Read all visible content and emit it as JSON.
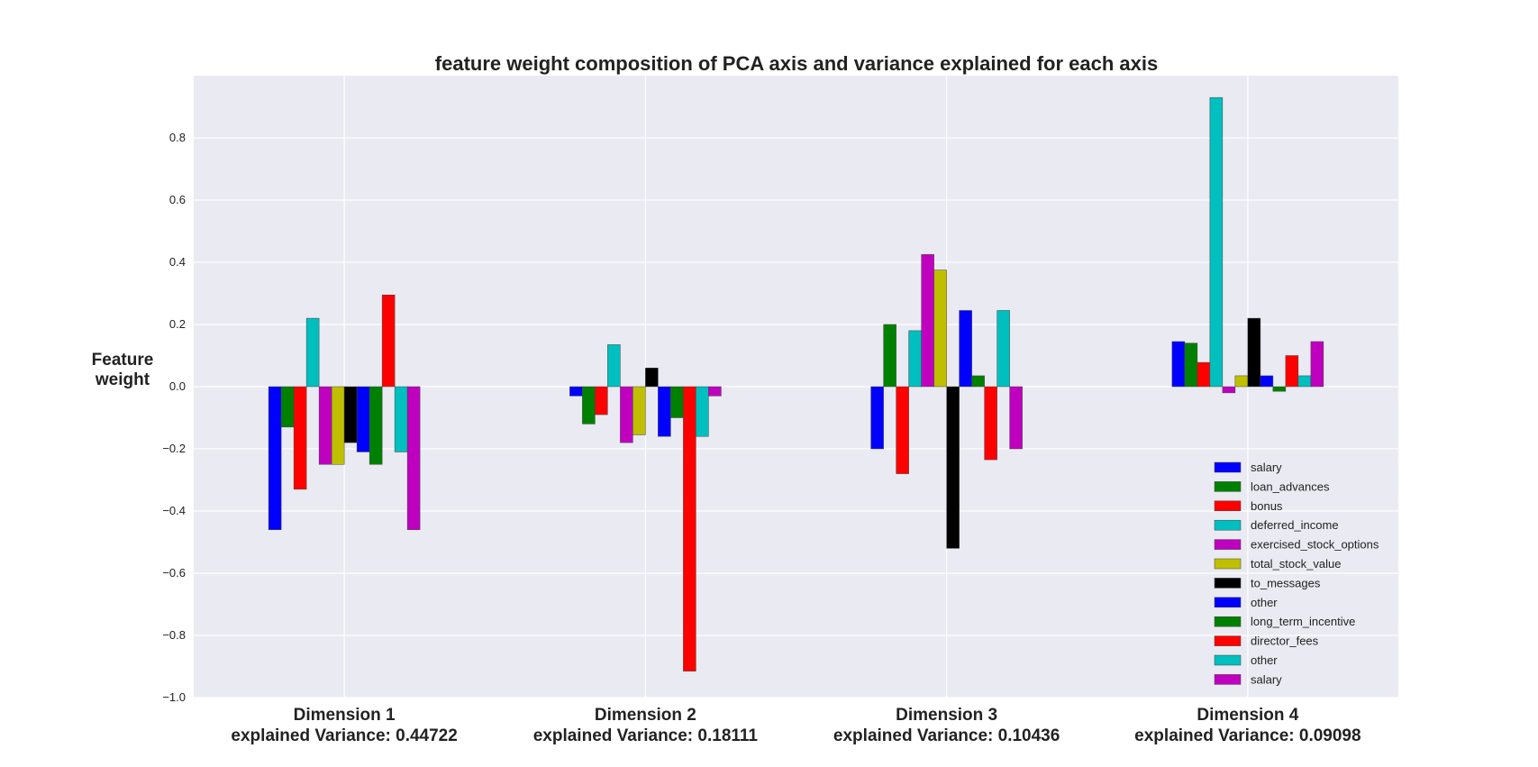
{
  "chart_data": {
    "type": "bar",
    "title": "feature weight composition of PCA axis and variance explained for each axis",
    "ylabel_lines": [
      "Feature",
      "weight"
    ],
    "xlabel": "",
    "ylim": [
      -1.0,
      1.0
    ],
    "yticks": [
      -1.0,
      -0.8,
      -0.6,
      -0.4,
      -0.2,
      0.0,
      0.2,
      0.4,
      0.6,
      0.8
    ],
    "grid": true,
    "legend_position": "bottom-right",
    "categories": [
      {
        "name": "Dimension 1",
        "variance_label": "explained Variance: 0.44722"
      },
      {
        "name": "Dimension 2",
        "variance_label": "explained Variance: 0.18111"
      },
      {
        "name": "Dimension 3",
        "variance_label": "explained Variance: 0.10436"
      },
      {
        "name": "Dimension 4",
        "variance_label": "explained Variance: 0.09098"
      }
    ],
    "series": [
      {
        "name": "salary",
        "color": "#0000ff",
        "values": [
          -0.46,
          -0.03,
          -0.2,
          0.145
        ]
      },
      {
        "name": "loan_advances",
        "color": "#008000",
        "values": [
          -0.13,
          -0.12,
          0.2,
          0.14
        ]
      },
      {
        "name": "bonus",
        "color": "#ff0000",
        "values": [
          -0.33,
          -0.09,
          -0.28,
          0.078
        ]
      },
      {
        "name": "deferred_income",
        "color": "#00bfbf",
        "values": [
          0.22,
          0.135,
          0.18,
          0.93
        ]
      },
      {
        "name": "exercised_stock_options",
        "color": "#bf00bf",
        "values": [
          -0.25,
          -0.18,
          0.425,
          -0.02
        ]
      },
      {
        "name": "total_stock_value",
        "color": "#bfbf00",
        "values": [
          -0.25,
          -0.155,
          0.375,
          0.035
        ]
      },
      {
        "name": "to_messages",
        "color": "#000000",
        "values": [
          -0.18,
          0.06,
          -0.52,
          0.22
        ]
      },
      {
        "name": "other",
        "color": "#0000ff",
        "values": [
          -0.21,
          -0.16,
          0.245,
          0.035
        ]
      },
      {
        "name": "long_term_incentive",
        "color": "#008000",
        "values": [
          -0.25,
          -0.1,
          0.035,
          -0.015
        ]
      },
      {
        "name": "director_fees",
        "color": "#ff0000",
        "values": [
          0.295,
          -0.915,
          -0.235,
          0.1
        ]
      },
      {
        "name": "other",
        "color": "#00bfbf",
        "values": [
          -0.21,
          -0.16,
          0.245,
          0.035
        ]
      },
      {
        "name": "salary",
        "color": "#bf00bf",
        "values": [
          -0.46,
          -0.03,
          -0.2,
          0.145
        ]
      }
    ]
  }
}
